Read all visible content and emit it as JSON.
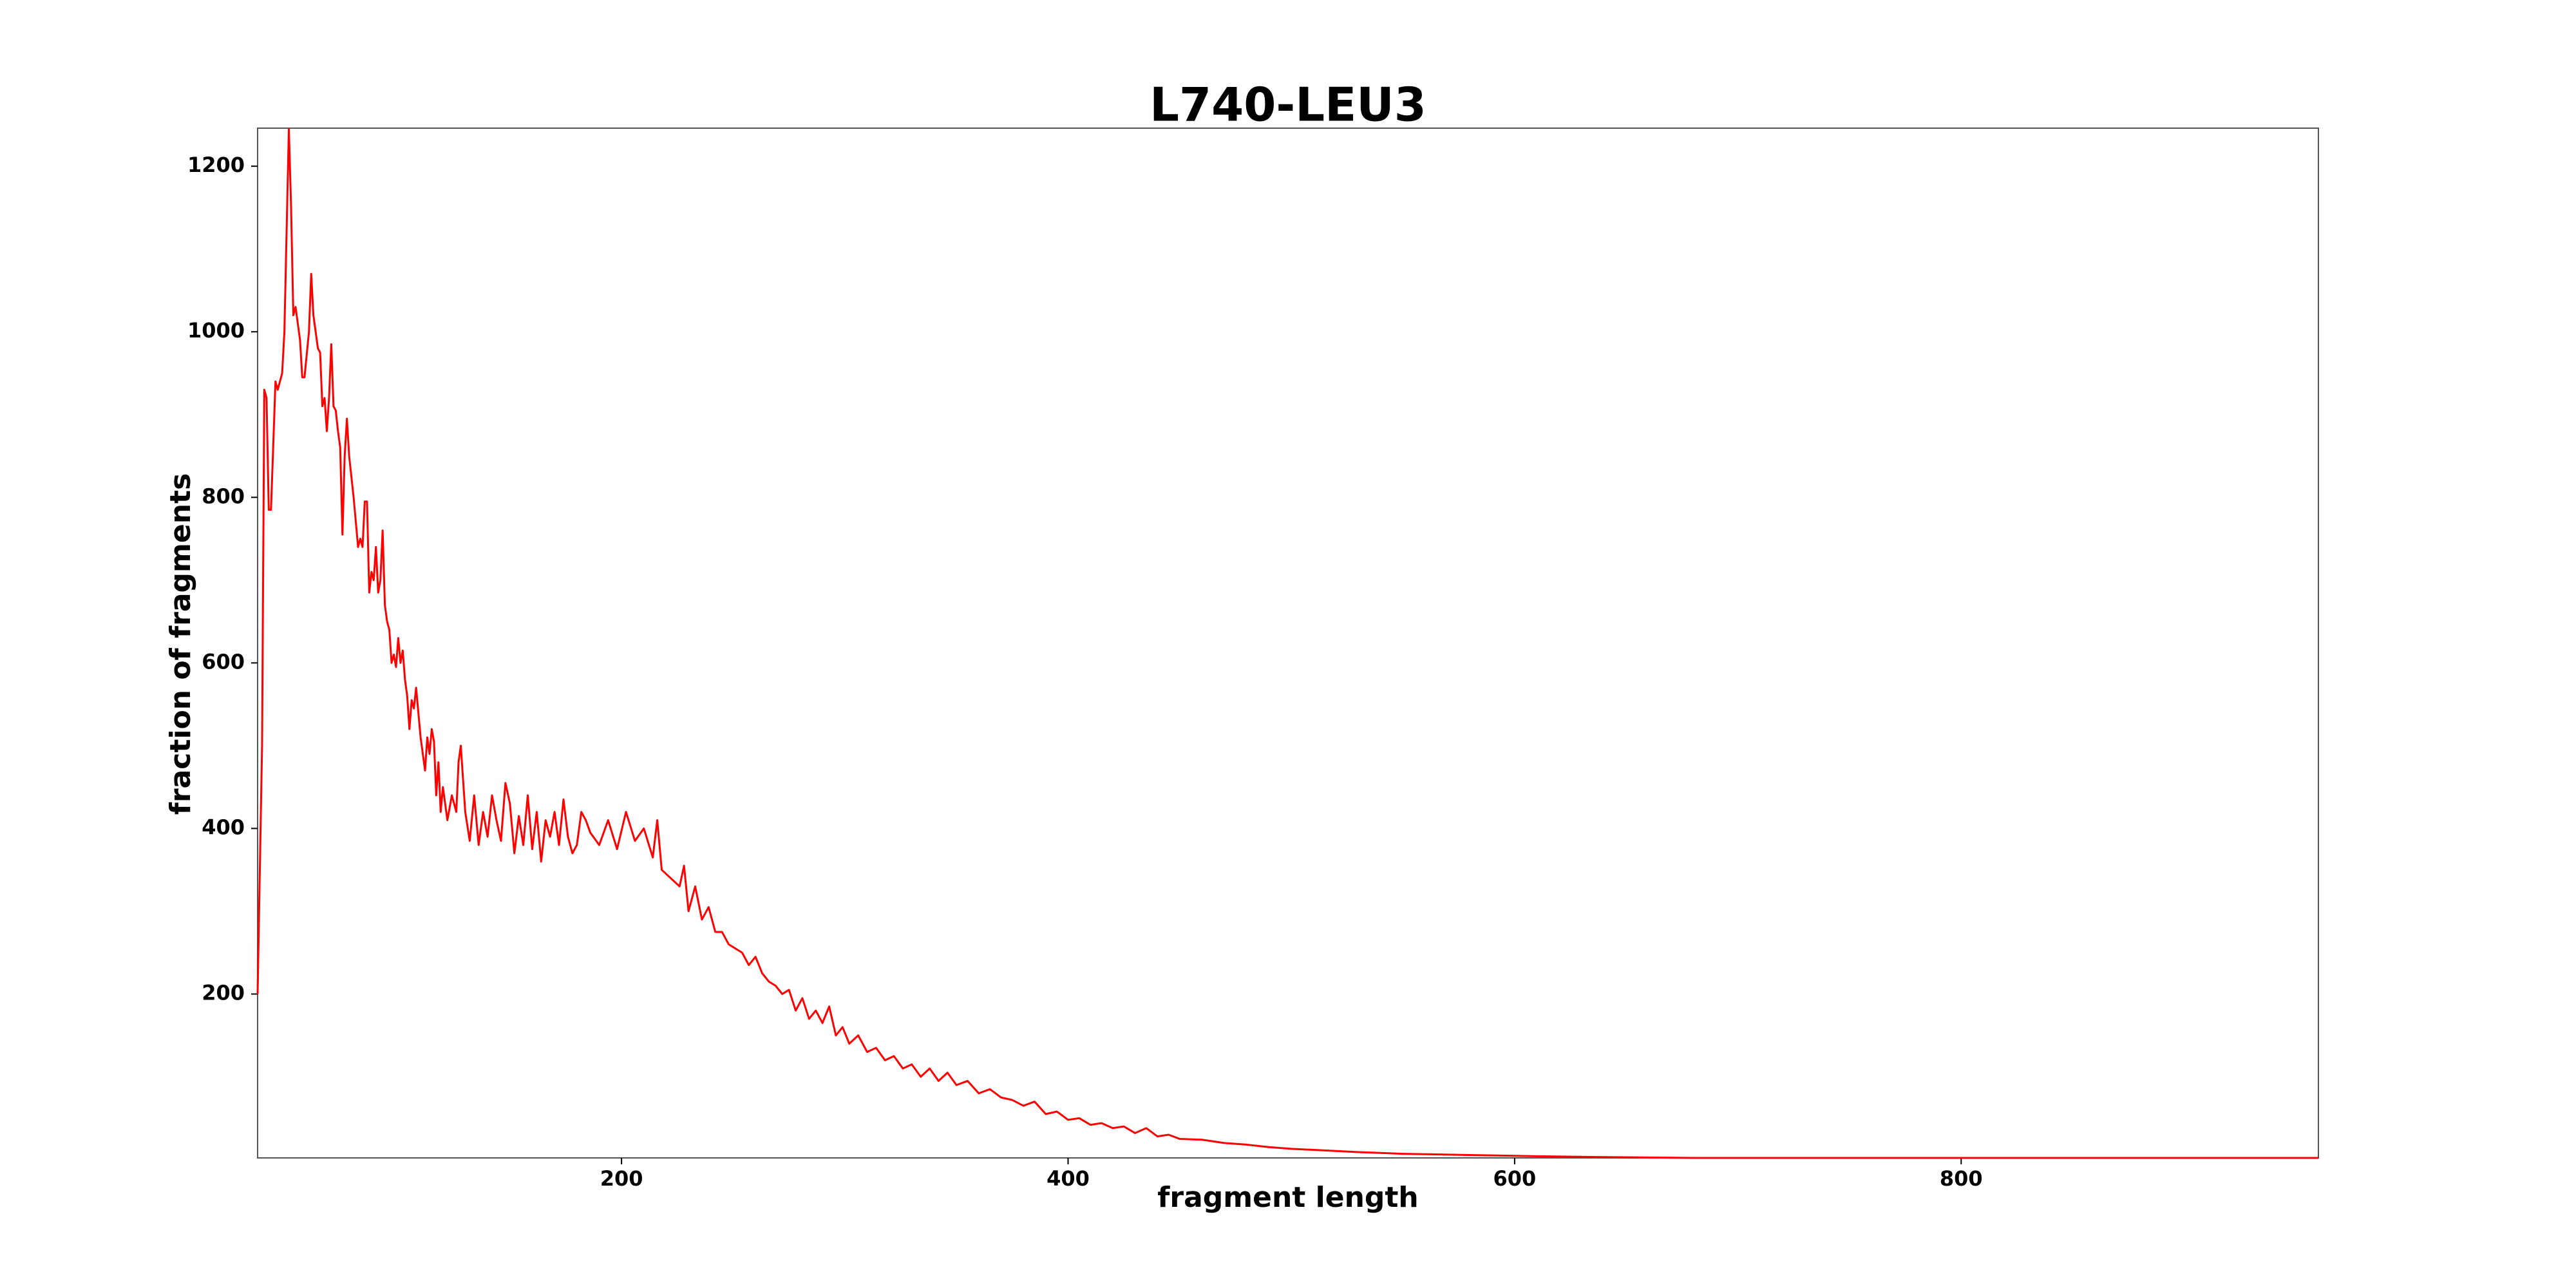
{
  "chart_data": {
    "type": "line",
    "title": "L740-LEU3",
    "x_label": "fragment length",
    "y_label": "fraction of fragments",
    "color": "#ff0000",
    "x": [
      37,
      39,
      40,
      41,
      42,
      43,
      45,
      46,
      48,
      49,
      51,
      52,
      53,
      54,
      56,
      57,
      58,
      60,
      61,
      62,
      64,
      65,
      66,
      67,
      68,
      69,
      70,
      71,
      72,
      73,
      74,
      75,
      76,
      77,
      78,
      80,
      82,
      83,
      84,
      85,
      86,
      87,
      88,
      89,
      90,
      91,
      92,
      93,
      94,
      95,
      96,
      97,
      98,
      99,
      100,
      101,
      102,
      103,
      104,
      105,
      106,
      107,
      108,
      110,
      112,
      113,
      114,
      115,
      116,
      117,
      118,
      119,
      120,
      122,
      124,
      126,
      127,
      128,
      130,
      132,
      134,
      136,
      138,
      140,
      142,
      144,
      146,
      148,
      150,
      152,
      154,
      156,
      158,
      160,
      162,
      164,
      166,
      168,
      170,
      172,
      174,
      176,
      178,
      180,
      182,
      184,
      186,
      190,
      194,
      198,
      202,
      206,
      210,
      214,
      216,
      218,
      222,
      226,
      228,
      230,
      233,
      236,
      239,
      242,
      245,
      248,
      251,
      254,
      257,
      260,
      263,
      266,
      269,
      272,
      275,
      278,
      281,
      284,
      287,
      290,
      293,
      296,
      299,
      302,
      306,
      310,
      314,
      318,
      322,
      326,
      330,
      334,
      338,
      342,
      346,
      350,
      355,
      360,
      365,
      370,
      375,
      380,
      385,
      390,
      395,
      400,
      405,
      410,
      415,
      420,
      425,
      430,
      435,
      440,
      445,
      450,
      460,
      470,
      480,
      490,
      500,
      515,
      530,
      550,
      570,
      590,
      610,
      640,
      680,
      720,
      780,
      850,
      900,
      960
    ],
    "values": [
      200,
      500,
      930,
      920,
      785,
      785,
      940,
      930,
      950,
      1000,
      1245,
      1150,
      1020,
      1030,
      990,
      945,
      945,
      1000,
      1070,
      1020,
      980,
      975,
      910,
      920,
      880,
      920,
      985,
      910,
      905,
      880,
      860,
      755,
      850,
      895,
      850,
      800,
      740,
      750,
      740,
      795,
      795,
      685,
      710,
      700,
      740,
      685,
      700,
      760,
      670,
      650,
      640,
      600,
      610,
      595,
      630,
      600,
      615,
      580,
      560,
      520,
      555,
      545,
      570,
      510,
      470,
      510,
      490,
      520,
      505,
      440,
      480,
      420,
      450,
      410,
      440,
      420,
      480,
      500,
      420,
      385,
      440,
      380,
      420,
      390,
      440,
      410,
      385,
      455,
      430,
      370,
      415,
      380,
      440,
      375,
      420,
      360,
      410,
      390,
      420,
      380,
      435,
      390,
      370,
      380,
      420,
      410,
      395,
      380,
      410,
      375,
      420,
      385,
      400,
      365,
      410,
      350,
      340,
      330,
      355,
      300,
      330,
      290,
      305,
      275,
      275,
      260,
      255,
      250,
      235,
      245,
      225,
      215,
      210,
      200,
      205,
      180,
      195,
      170,
      180,
      165,
      185,
      150,
      160,
      140,
      150,
      130,
      135,
      120,
      125,
      110,
      115,
      100,
      110,
      95,
      105,
      90,
      95,
      80,
      85,
      75,
      72,
      65,
      70,
      55,
      58,
      48,
      50,
      42,
      44,
      38,
      40,
      32,
      38,
      28,
      30,
      25,
      24,
      20,
      18,
      15,
      13,
      11,
      9,
      7,
      6,
      5,
      4,
      3,
      2,
      2,
      2,
      2,
      2,
      2
    ],
    "xlim": [
      37,
      960
    ],
    "ylim": [
      2,
      1246
    ],
    "xticks": [
      200,
      400,
      600,
      800
    ],
    "yticks": [
      200,
      400,
      600,
      800,
      1000,
      1200
    ]
  }
}
